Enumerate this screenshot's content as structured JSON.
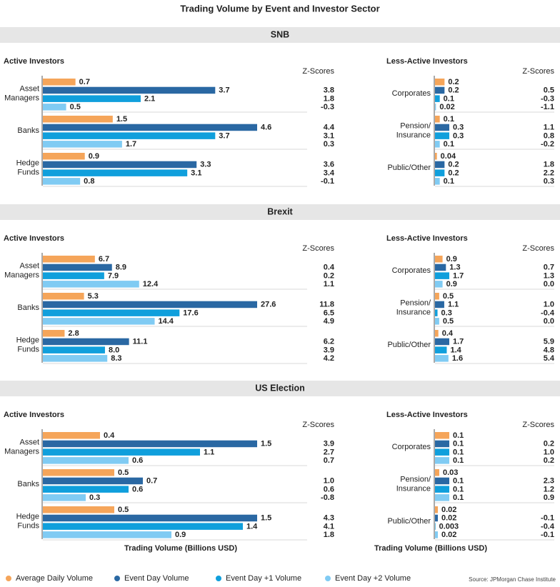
{
  "title": "Trading Volume by Event and Investor Sector",
  "sections": [
    "SNB",
    "Brexit",
    "US Election"
  ],
  "legend": [
    {
      "name": "Average Daily Volume",
      "color": "#f5a55a"
    },
    {
      "name": "Event Day Volume",
      "color": "#2a68a3"
    },
    {
      "name": "Event Day +1 Volume",
      "color": "#109fdc"
    },
    {
      "name": "Event Day +2 Volume",
      "color": "#80cbf3"
    }
  ],
  "source": "Source: JPMorgan Chase Institute",
  "chart_data": [
    {
      "type": "bar",
      "section": 0,
      "panel": "active",
      "title": "Active Investors",
      "z_title": "Z-Scores",
      "categories": [
        [
          "Asset",
          "Managers"
        ],
        [
          "Banks"
        ],
        [
          "Hedge",
          "Funds"
        ]
      ],
      "series": [
        {
          "values": [
            0.7,
            1.5,
            0.9
          ]
        },
        {
          "values": [
            3.7,
            4.6,
            3.3
          ],
          "z_scores": [
            "3.8",
            "4.4",
            "3.6"
          ]
        },
        {
          "values": [
            2.1,
            3.7,
            3.1
          ],
          "z_scores": [
            "1.8",
            "3.1",
            "3.4"
          ]
        },
        {
          "values": [
            0.5,
            1.7,
            0.8
          ],
          "z_scores": [
            "-0.3",
            "0.3",
            "-0.1"
          ]
        }
      ]
    },
    {
      "type": "bar",
      "section": 0,
      "panel": "less",
      "title": "Less-Active Investors",
      "z_title": "Z-Scores",
      "categories": [
        [
          "Corporates"
        ],
        [
          "Pension/",
          "Insurance"
        ],
        [
          "Public/Other"
        ]
      ],
      "series": [
        {
          "values": [
            0.2,
            0.1,
            0.04
          ]
        },
        {
          "values": [
            0.2,
            0.3,
            0.2
          ],
          "z_scores": [
            "0.5",
            "1.1",
            "1.8"
          ]
        },
        {
          "values": [
            0.1,
            0.3,
            0.2
          ],
          "z_scores": [
            "-0.3",
            "0.8",
            "2.2"
          ]
        },
        {
          "values": [
            0.02,
            0.1,
            0.1
          ],
          "z_scores": [
            "-1.1",
            "-0.2",
            "0.3"
          ]
        }
      ]
    },
    {
      "type": "bar",
      "section": 1,
      "panel": "active",
      "title": "Active Investors",
      "z_title": "Z-Scores",
      "categories": [
        [
          "Asset",
          "Managers"
        ],
        [
          "Banks"
        ],
        [
          "Hedge",
          "Funds"
        ]
      ],
      "series": [
        {
          "values": [
            6.7,
            5.3,
            2.8
          ]
        },
        {
          "values": [
            8.9,
            27.6,
            11.1
          ],
          "z_scores": [
            "0.4",
            "11.8",
            "6.2"
          ]
        },
        {
          "values": [
            7.9,
            17.6,
            8
          ],
          "value_labels": [
            "7.9",
            "17.6",
            "8.0"
          ],
          "z_scores": [
            "0.2",
            "6.5",
            "3.9"
          ]
        },
        {
          "values": [
            12.4,
            14.4,
            8.3
          ],
          "z_scores": [
            "1.1",
            "4.9",
            "4.2"
          ]
        }
      ]
    },
    {
      "type": "bar",
      "section": 1,
      "panel": "less",
      "title": "Less-Active Investors",
      "z_title": "Z-Scores",
      "categories": [
        [
          "Corporates"
        ],
        [
          "Pension/",
          "Insurance"
        ],
        [
          "Public/Other"
        ]
      ],
      "series": [
        {
          "values": [
            0.9,
            0.5,
            0.4
          ]
        },
        {
          "values": [
            1.3,
            1.1,
            1.7
          ],
          "z_scores": [
            "0.7",
            "1.0",
            "5.9"
          ]
        },
        {
          "values": [
            1.7,
            0.3,
            1.4
          ],
          "z_scores": [
            "1.3",
            "-0.4",
            "4.8"
          ]
        },
        {
          "values": [
            0.9,
            0.5,
            1.6
          ],
          "z_scores": [
            "0.0",
            "0.0",
            "5.4"
          ]
        }
      ]
    },
    {
      "type": "bar",
      "section": 2,
      "panel": "active",
      "title": "Active Investors",
      "z_title": "Z-Scores",
      "xlabel": "Trading Volume (Billions USD)",
      "categories": [
        [
          "Asset",
          "Managers"
        ],
        [
          "Banks"
        ],
        [
          "Hedge",
          "Funds"
        ]
      ],
      "series": [
        {
          "values": [
            0.4,
            0.5,
            0.5
          ]
        },
        {
          "values": [
            1.5,
            0.7,
            1.5
          ],
          "z_scores": [
            "3.9",
            "1.0",
            "4.3"
          ]
        },
        {
          "values": [
            1.1,
            0.6,
            1.4
          ],
          "z_scores": [
            "2.7",
            "0.6",
            "4.1"
          ]
        },
        {
          "values": [
            0.6,
            0.3,
            0.9
          ],
          "z_scores": [
            "0.7",
            "-0.8",
            "1.8"
          ]
        }
      ]
    },
    {
      "type": "bar",
      "section": 2,
      "panel": "less",
      "title": "Less-Active Investors",
      "z_title": "Z-Scores",
      "xlabel": "Trading Volume (Billions USD)",
      "categories": [
        [
          "Corporates"
        ],
        [
          "Pension/",
          "Insurance"
        ],
        [
          "Public/Other"
        ]
      ],
      "series": [
        {
          "values": [
            0.1,
            0.03,
            0.02
          ]
        },
        {
          "values": [
            0.1,
            0.1,
            0.02
          ],
          "z_scores": [
            "0.2",
            "2.3",
            "-0.1"
          ]
        },
        {
          "values": [
            0.1,
            0.1,
            0.003
          ],
          "z_scores": [
            "1.0",
            "1.2",
            "-0.4"
          ]
        },
        {
          "values": [
            0.1,
            0.1,
            0.02
          ],
          "z_scores": [
            "0.2",
            "0.9",
            "-0.1"
          ]
        }
      ]
    }
  ]
}
